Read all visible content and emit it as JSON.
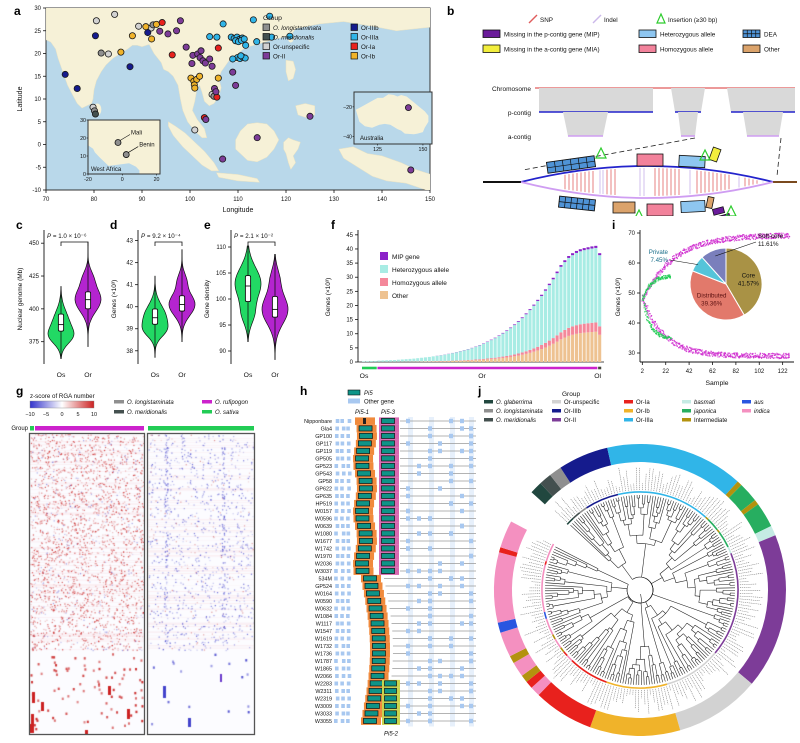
{
  "letters": {
    "a": "a",
    "b": "b",
    "c": "c",
    "d": "d",
    "e": "e",
    "f": "f",
    "g": "g",
    "h": "h",
    "i": "i",
    "j": "j"
  },
  "colors": {
    "O. longistaminata": "#8f8f8f",
    "O. meridionalis": "#44504f",
    "Or-unspecific": "#d2d2d2",
    "Or-II": "#7d3c98",
    "Or-IIIb": "#151b8d",
    "Or-IIIa": "#30b5e8",
    "Or-Ia": "#e8211d",
    "Or-Ib": "#f0b32a",
    "O. glaberrima": "#21473f",
    "basmati": "#c5ebe4",
    "japonica": "#27ae60",
    "Intermediate": "#b3920e",
    "aus": "#2956e0",
    "indica": "#f490c0",
    "O. rufipogon": "#cc22cc",
    "O. sativa": "#22cc55"
  },
  "panel_a": {
    "xlabel": "Longitude",
    "ylabel": "Latitude",
    "xticks": [
      70,
      80,
      90,
      100,
      110,
      120,
      130,
      140,
      150
    ],
    "yticks": [
      -10,
      -5,
      0,
      5,
      10,
      15,
      20,
      25,
      30
    ],
    "legend": {
      "title": "Group",
      "col1": [
        {
          "l": "O. longistaminata",
          "it": 1
        },
        {
          "l": "O. meridionalis",
          "it": 1
        },
        {
          "l": "Or-unspecific"
        },
        {
          "l": "Or-II"
        }
      ],
      "col2": [
        {
          "l": "Or-IIIb"
        },
        {
          "l": "Or-IIIa"
        },
        {
          "l": "Or-Ia"
        },
        {
          "l": "Or-Ib"
        }
      ]
    },
    "inset_wa": {
      "label": "West Africa",
      "xticks": [
        -20,
        0,
        20
      ],
      "yticks": [
        0,
        10,
        20,
        30
      ],
      "points": [
        {
          "name": "Mali",
          "lon": -2.5,
          "lat": 17.5
        },
        {
          "name": "Benin",
          "lon": 2.3,
          "lat": 10.8
        }
      ]
    },
    "inset_au": {
      "label": "Australia",
      "xticks": [
        125,
        150
      ],
      "yticks": [
        -20,
        -40
      ],
      "point": {
        "lon": 142,
        "lat": -20.5,
        "g": "Or-II"
      }
    },
    "points": [
      [
        80.5,
        27.2,
        "Or-unspecific"
      ],
      [
        84.3,
        28.6,
        "Or-unspecific"
      ],
      [
        89.3,
        26,
        "Or-unspecific"
      ],
      [
        83,
        19.9,
        "Or-unspecific"
      ],
      [
        79.8,
        8.2,
        "Or-unspecific"
      ],
      [
        101,
        3.2,
        "Or-unspecific"
      ],
      [
        91.9,
        25.6,
        "Or-unspecific"
      ],
      [
        104.6,
        11,
        "Or-unspecific"
      ],
      [
        81.5,
        20.1,
        "O. longistaminata"
      ],
      [
        80.1,
        7.4,
        "O. longistaminata"
      ],
      [
        92.3,
        26.3,
        "O. longistaminata"
      ],
      [
        105,
        10.6,
        "O. longistaminata"
      ],
      [
        80.3,
        6.7,
        "O. meridionalis"
      ],
      [
        74,
        15.4,
        "Or-IIIb"
      ],
      [
        76.5,
        12.3,
        "Or-IIIb"
      ],
      [
        87.5,
        17.1,
        "Or-IIIb"
      ],
      [
        80.3,
        23.9,
        "Or-IIIb"
      ],
      [
        91.2,
        24.6,
        "Or-IIIb"
      ],
      [
        85.6,
        20.3,
        "Or-Ib"
      ],
      [
        88,
        23.9,
        "Or-Ib"
      ],
      [
        90.8,
        25.9,
        "Or-Ib"
      ],
      [
        93,
        26.4,
        "Or-Ib"
      ],
      [
        100.2,
        14.6,
        "Or-Ib"
      ],
      [
        100.8,
        13.9,
        "Or-Ib"
      ],
      [
        101.4,
        14.3,
        "Or-Ib"
      ],
      [
        100.9,
        13.1,
        "Or-Ib"
      ],
      [
        105.9,
        14.6,
        "Or-Ib"
      ],
      [
        102,
        15,
        "Or-Ib"
      ],
      [
        101,
        12.4,
        "Or-Ib"
      ],
      [
        92,
        23.2,
        "Or-Ib"
      ],
      [
        94.2,
        26.8,
        "Or-Ia"
      ],
      [
        96.3,
        19.7,
        "Or-Ia"
      ],
      [
        105.6,
        10.4,
        "Or-Ia"
      ],
      [
        103,
        5.9,
        "Or-Ia"
      ],
      [
        105.9,
        21.2,
        "Or-Ia"
      ],
      [
        95.4,
        24.3,
        "Or-II"
      ],
      [
        97.2,
        25,
        "Or-II"
      ],
      [
        99.2,
        21.4,
        "Or-II"
      ],
      [
        100.6,
        19.6,
        "Or-II"
      ],
      [
        101.6,
        19.9,
        "Or-II"
      ],
      [
        102.1,
        19.1,
        "Or-II"
      ],
      [
        102.7,
        18.4,
        "Or-II"
      ],
      [
        103.2,
        17.9,
        "Or-II"
      ],
      [
        104.1,
        18.8,
        "Or-II"
      ],
      [
        104.6,
        17.2,
        "Or-II"
      ],
      [
        102.3,
        20.6,
        "Or-II"
      ],
      [
        100.4,
        17.8,
        "Or-II"
      ],
      [
        105.1,
        12.3,
        "Or-II"
      ],
      [
        105.4,
        11.6,
        "Or-II"
      ],
      [
        103.3,
        5.5,
        "Or-II"
      ],
      [
        106.8,
        -3.2,
        "Or-II"
      ],
      [
        114,
        1.5,
        "Or-II"
      ],
      [
        125,
        6.2,
        "Or-II"
      ],
      [
        146,
        -5.6,
        "Or-II"
      ],
      [
        98,
        27.2,
        "Or-II"
      ],
      [
        93.7,
        24.9,
        "Or-II"
      ],
      [
        108.9,
        15.9,
        "Or-II"
      ],
      [
        109.5,
        13,
        "Or-II"
      ],
      [
        108.6,
        23.6,
        "Or-IIIa"
      ],
      [
        109.2,
        23.3,
        "Or-IIIa"
      ],
      [
        109.8,
        23.6,
        "Or-IIIa"
      ],
      [
        110.3,
        23.1,
        "Or-IIIa"
      ],
      [
        110.9,
        23.4,
        "Or-IIIa"
      ],
      [
        109.5,
        22.8,
        "Or-IIIa"
      ],
      [
        110.1,
        22.6,
        "Or-IIIa"
      ],
      [
        110.7,
        22.9,
        "Or-IIIa"
      ],
      [
        111.3,
        23.2,
        "Or-IIIa"
      ],
      [
        109.9,
        19.1,
        "Or-IIIa"
      ],
      [
        110.4,
        18.9,
        "Or-IIIa"
      ],
      [
        111,
        19.2,
        "Or-IIIa"
      ],
      [
        111.5,
        19,
        "Or-IIIa"
      ],
      [
        108.9,
        18.8,
        "Or-IIIa"
      ],
      [
        110.6,
        19.5,
        "Or-IIIa"
      ],
      [
        113.9,
        22.6,
        "Or-IIIa"
      ],
      [
        117,
        23.6,
        "Or-IIIa"
      ],
      [
        116.6,
        28.2,
        "Or-IIIa"
      ],
      [
        113.2,
        27.4,
        "Or-IIIa"
      ],
      [
        105.6,
        23.6,
        "Or-IIIa"
      ],
      [
        104.1,
        23.7,
        "Or-IIIa"
      ],
      [
        111.6,
        21.8,
        "Or-IIIa"
      ],
      [
        120.8,
        23.8,
        "Or-IIIa"
      ],
      [
        106.9,
        26.5,
        "Or-IIIa"
      ]
    ]
  },
  "panel_b": {
    "legend_row1": [
      {
        "l": "SNP",
        "kind": "snp"
      },
      {
        "l": "Indel",
        "kind": "indel"
      },
      {
        "l": "Insertion (≥30 bp)",
        "kind": "ins"
      }
    ],
    "legend_row2": [
      {
        "l": "Missing in the p-contig gene (MIP)",
        "kind": "box",
        "c": "#6a1b9a"
      },
      {
        "l": "Heterozygous allele",
        "kind": "box",
        "c": "#8ec6f0"
      },
      {
        "l": "DEA",
        "kind": "hatch",
        "c": "#4f93d6"
      }
    ],
    "legend_row3": [
      {
        "l": "Missing in the a-contig gene (MIA)",
        "kind": "box",
        "c": "#f2ee3d"
      },
      {
        "l": "Homozygous allele",
        "kind": "box",
        "c": "#f2829b"
      },
      {
        "l": "Other",
        "kind": "box",
        "c": "#dba36b"
      }
    ],
    "tracks": [
      "Chromosome",
      "p-contig",
      "a-contig"
    ],
    "palette": {
      "snp": "#e05c5c",
      "indel": "#cbb8ea",
      "ins": "#2ecc2e",
      "mip": "#6a1b9a",
      "mia": "#f2ee3d",
      "het": "#8ec6f0",
      "hom": "#f2829b",
      "dea": "#4f93d6",
      "other": "#dba36b",
      "pcontig": "#2323cc",
      "acontig": "#cf9df2",
      "chrom": "#e05c5c",
      "align": "#d9d9d9"
    }
  },
  "violins": [
    {
      "letter": "c",
      "ylabel": "Nuclear genome (Mb)",
      "p_italic": "P",
      "p_rest": " = 1.0 × 10⁻⁶",
      "ylim": [
        358,
        457
      ],
      "yticks": [
        375,
        400,
        425,
        450
      ],
      "cats": [
        "Os",
        "Or"
      ],
      "os": {
        "modes": [
          [
            390,
            9,
            0.75
          ],
          [
            379,
            6,
            0.9
          ]
        ],
        "lo": 362,
        "hi": 417,
        "q1": 383,
        "q3": 396,
        "med": 388
      },
      "or": {
        "modes": [
          [
            407,
            9,
            1
          ],
          [
            424,
            6,
            0.3
          ]
        ],
        "lo": 371,
        "hi": 451,
        "q1": 400,
        "q3": 413,
        "med": 407
      }
    },
    {
      "letter": "d",
      "ylabel": "Genes (×10³)",
      "p_italic": "P",
      "p_rest": " = 9.2 × 10⁻⁴",
      "ylim": [
        37.4,
        43.3
      ],
      "yticks": [
        38,
        39,
        40,
        41,
        42,
        43
      ],
      "cats": [
        "Os",
        "Or"
      ],
      "os": {
        "modes": [
          [
            39.5,
            0.55,
            1
          ],
          [
            38.9,
            0.3,
            0.5
          ]
        ],
        "lo": 37.7,
        "hi": 41.4,
        "q1": 39.2,
        "q3": 39.9,
        "med": 39.5
      },
      "or": {
        "modes": [
          [
            40.1,
            0.5,
            1
          ],
          [
            41.2,
            0.35,
            0.3
          ]
        ],
        "lo": 38.4,
        "hi": 42.6,
        "q1": 39.8,
        "q3": 40.5,
        "med": 40.1
      }
    },
    {
      "letter": "e",
      "ylabel": "Gene density",
      "p_italic": "P",
      "p_rest": " = 2.1 × 10⁻²",
      "ylim": [
        87.5,
        112.5
      ],
      "yticks": [
        90,
        95,
        100,
        105,
        110
      ],
      "cats": [
        "Os",
        "Or"
      ],
      "os": {
        "modes": [
          [
            103,
            3,
            1
          ],
          [
            97,
            2,
            0.4
          ]
        ],
        "lo": 91.8,
        "hi": 110.2,
        "q1": 99.5,
        "q3": 104.5,
        "med": 102.5
      },
      "or": {
        "modes": [
          [
            98,
            2.8,
            1
          ],
          [
            104,
            2,
            0.3
          ]
        ],
        "lo": 88.3,
        "hi": 108.6,
        "q1": 96.5,
        "q3": 100.5,
        "med": 98
      }
    }
  ],
  "panel_f": {
    "ylabel": "Genes (×10³)",
    "yticks": [
      0,
      5,
      10,
      15,
      20,
      25,
      30,
      35,
      40,
      45
    ],
    "legend": [
      {
        "l": "MIP gene",
        "c": "#8b22c8"
      },
      {
        "l": "Heterozygous allele",
        "c": "#a8ece4"
      },
      {
        "l": "Homozygous allele",
        "c": "#f4889a"
      },
      {
        "l": "Other",
        "c": "#eec291"
      }
    ],
    "bands": [
      {
        "label": "Os",
        "c": "#22cc55",
        "n": 4
      },
      {
        "label": "Or",
        "c": "#cc22cc",
        "n": 57
      },
      {
        "label": "Ol",
        "c": "#44443c",
        "n": 1
      }
    ],
    "totals": [
      0.2,
      0.25,
      0.3,
      0.35,
      0.5,
      0.55,
      0.6,
      0.65,
      0.7,
      0.8,
      0.9,
      1,
      1.1,
      1.2,
      1.35,
      1.5,
      1.65,
      1.8,
      2,
      2.2,
      2.4,
      2.65,
      2.9,
      3.2,
      3.5,
      3.85,
      4.2,
      4.6,
      5,
      5.5,
      6,
      6.6,
      7.2,
      7.9,
      8.6,
      9.4,
      10.3,
      11.2,
      12.2,
      13.3,
      14.5,
      15.8,
      17.2,
      18.7,
      20.3,
      22,
      23.8,
      25.7,
      27.7,
      29.8,
      32,
      34.3,
      36,
      37.5,
      38.5,
      39.3,
      39.9,
      40.3,
      40.6,
      40.9,
      41.1,
      38.5
    ],
    "comp": {
      "other_base": 0.1,
      "other_k": 0.16,
      "hom_base": 0.035,
      "hom_k": 0.045,
      "mip": 0.018
    }
  },
  "panel_i": {
    "ylabel": "Genes (×10³)",
    "xlabel": "Sample",
    "yticks": [
      30,
      40,
      50,
      60,
      70
    ],
    "xticks": [
      2,
      22,
      42,
      62,
      82,
      102,
      122
    ],
    "pan_color": "#cc22cc",
    "sativa_color": "#22cc55",
    "curves": {
      "pan_start": 48,
      "pan_end": 69.5,
      "core_start": 48.5,
      "core_end": 29.2,
      "green_pan_end": 56,
      "green_core_end": 35
    },
    "pie": [
      {
        "label": "Core",
        "pct": "41.57%",
        "v": 41.57,
        "c": "#a99245"
      },
      {
        "label": "Distributed",
        "pct": "39.36%",
        "v": 39.36,
        "c": "#e2796b"
      },
      {
        "label": "Private",
        "pct": "7.45%",
        "v": 7.45,
        "c": "#55c4d9"
      },
      {
        "label": "Soft-core",
        "pct": "11.61%",
        "v": 11.61,
        "c": "#7a7fbc"
      }
    ]
  },
  "panel_g": {
    "colorbar": {
      "label": "z-score of RGA number",
      "ticks": [
        -10,
        -5,
        0,
        5,
        10
      ],
      "neg": "#3333cc",
      "mid": "#ffffff",
      "pos": "#cc2222"
    },
    "legend": [
      {
        "l": "O. longistaminata",
        "c": "#8f8f8f"
      },
      {
        "l": "O. rufipogon",
        "c": "#cc22cc"
      },
      {
        "l": "O. meridionalis",
        "c": "#44504f"
      },
      {
        "l": "O. sativa",
        "c": "#22cc55"
      }
    ],
    "group_label": "Group",
    "left_bar": {
      "main": "#cc22cc",
      "tip": "#22cc55"
    },
    "right_bar": {
      "main": "#22cc55"
    }
  },
  "panel_h": {
    "legend": [
      {
        "l": "Pi5",
        "c": "#0e9488"
      },
      {
        "l": "Other gene",
        "c": "#a8c8f0"
      }
    ],
    "col_labels": [
      "Pi5-1",
      "Pi5-3"
    ],
    "bottom_label": "Pi5-2",
    "ribbons": {
      "pi51": "#f08a3c",
      "pi53": "#d668b0",
      "pi52": "#c8d44e"
    },
    "gene_color": "#0e9488",
    "other_color": "#a8c8f0",
    "top_group_count": 21,
    "pi52_rows": 6,
    "samples": [
      "Nipponbare",
      "Gla4",
      "GP100",
      "GP117",
      "GP119",
      "GP505",
      "GP523",
      "GP543",
      "GP58",
      "GP622",
      "GP635",
      "HP519",
      "W0157",
      "W0596",
      "W0639",
      "W1080",
      "W1677",
      "W1742",
      "W1970",
      "W2036",
      "W3037",
      "534M",
      "GP524",
      "W0164",
      "W0590",
      "W0632",
      "W1084",
      "W1117",
      "W1547",
      "W1619",
      "W1732",
      "W1736",
      "W1787",
      "W1865",
      "W2066",
      "W2283",
      "W2311",
      "W2319",
      "W3009",
      "W3033",
      "W3055"
    ]
  },
  "panel_j": {
    "legend_title": "Group",
    "legend_cols": [
      [
        {
          "l": "O. glaberrima",
          "it": 1
        },
        {
          "l": "O. longistaminata",
          "it": 1
        },
        {
          "l": "O. meridionalis",
          "it": 1
        }
      ],
      [
        {
          "l": "Or-unspecific"
        },
        {
          "l": "Or-IIIb"
        },
        {
          "l": "Or-II"
        }
      ],
      [
        {
          "l": "Or-Ia"
        },
        {
          "l": "Or-Ib"
        },
        {
          "l": "Or-IIIa"
        }
      ],
      [
        {
          "l": "basmati",
          "it": 1
        },
        {
          "l": "japonica",
          "it": 1
        },
        {
          "l": "Intermediate"
        }
      ],
      [
        {
          "l": "aus",
          "it": 1
        },
        {
          "l": "indica",
          "it": 1
        }
      ]
    ],
    "ring": [
      {
        "g": "gap",
        "d": 14
      },
      {
        "g": "O. glaberrima",
        "d": 5
      },
      {
        "g": "O. meridionalis",
        "d": 5
      },
      {
        "g": "O. longistaminata",
        "d": 5
      },
      {
        "g": "Or-IIIb",
        "d": 20
      },
      {
        "g": "Or-IIIa",
        "d": 55
      },
      {
        "g": "Intermediate",
        "d": 2
      },
      {
        "g": "japonica",
        "d": 8
      },
      {
        "g": "Intermediate",
        "d": 2
      },
      {
        "g": "japonica",
        "d": 10
      },
      {
        "g": "basmati",
        "d": 4
      },
      {
        "g": "Or-II",
        "d": 62
      },
      {
        "g": "Or-unspecific",
        "d": 34
      },
      {
        "g": "Or-Ib",
        "d": 36
      },
      {
        "g": "Or-Ia",
        "d": 24
      },
      {
        "g": "indica",
        "d": 4
      },
      {
        "g": "Or-Ia",
        "d": 3
      },
      {
        "g": "Intermediate",
        "d": 3
      },
      {
        "g": "indica",
        "d": 6
      },
      {
        "g": "Intermediate",
        "d": 3
      },
      {
        "g": "indica",
        "d": 10
      },
      {
        "g": "aus",
        "d": 4
      },
      {
        "g": "indica",
        "d": 28
      },
      {
        "g": "Or-Ia",
        "d": 2
      },
      {
        "g": "indica",
        "d": 11
      }
    ],
    "start_angle": -62
  }
}
